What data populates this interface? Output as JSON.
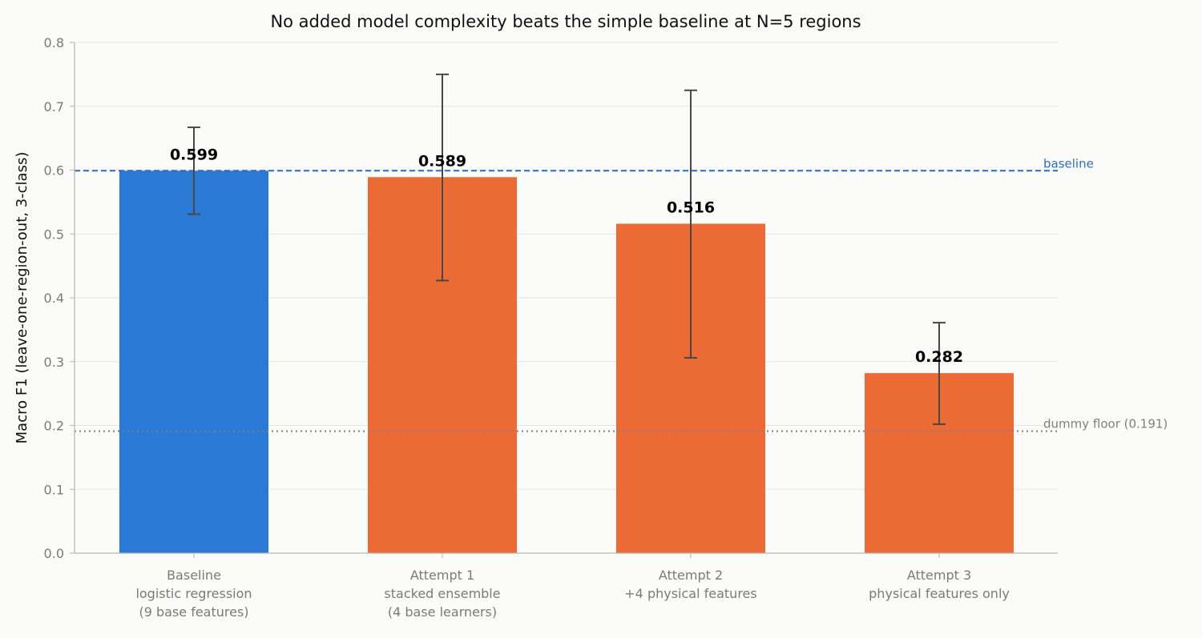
{
  "chart_data": {
    "type": "bar",
    "title": "No added model complexity beats the simple baseline at N=5 regions",
    "xlabel": "",
    "ylabel": "Macro F1 (leave-one-region-out, 3-class)",
    "ylim": [
      0,
      0.8
    ],
    "yticks": [
      "0.0",
      "0.1",
      "0.2",
      "0.3",
      "0.4",
      "0.5",
      "0.6",
      "0.7",
      "0.8"
    ],
    "grid": "horizontal",
    "categories": [
      [
        "Baseline",
        "logistic regression",
        "(9 base features)"
      ],
      [
        "Attempt 1",
        "stacked ensemble",
        "(4 base learners)"
      ],
      [
        "Attempt 2",
        "+4 physical features"
      ],
      [
        "Attempt 3",
        "physical features only"
      ]
    ],
    "values": [
      0.599,
      0.589,
      0.516,
      0.282
    ],
    "value_labels": [
      "0.599",
      "0.589",
      "0.516",
      "0.282"
    ],
    "error_low": [
      0.531,
      0.427,
      0.306,
      0.202
    ],
    "error_high": [
      0.667,
      0.75,
      0.725,
      0.361
    ],
    "bar_colors": [
      "#2a7ad5",
      "#eb6a36",
      "#eb6a36",
      "#eb6a36"
    ],
    "reference_lines": [
      {
        "label": "baseline",
        "value": 0.599,
        "style": "dashed",
        "color": "#2a6fc4"
      },
      {
        "label": "dummy floor (0.191)",
        "value": 0.191,
        "style": "dotted",
        "color": "#808080"
      }
    ]
  }
}
